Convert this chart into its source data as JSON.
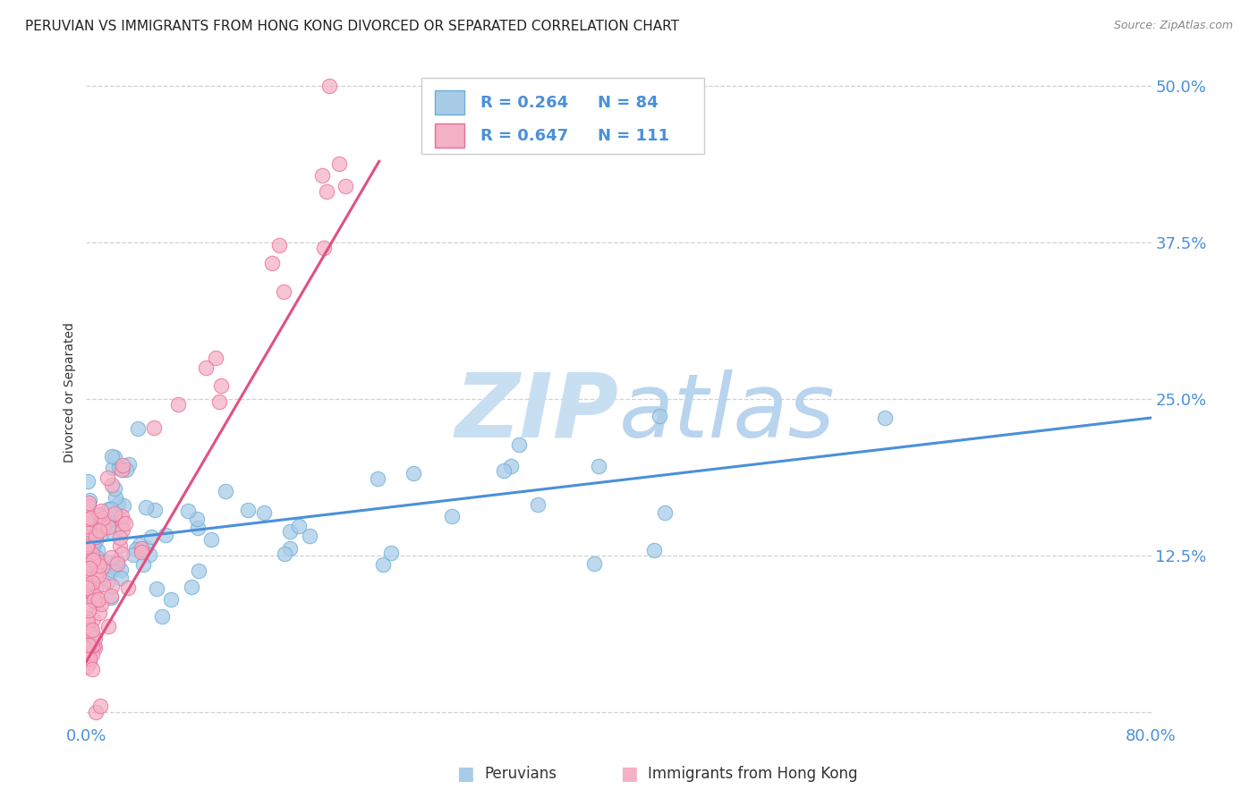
{
  "title": "PERUVIAN VS IMMIGRANTS FROM HONG KONG DIVORCED OR SEPARATED CORRELATION CHART",
  "source": "Source: ZipAtlas.com",
  "ylabel": "Divorced or Separated",
  "xlim": [
    0.0,
    0.8
  ],
  "ylim": [
    -0.01,
    0.52
  ],
  "yticks": [
    0.0,
    0.125,
    0.25,
    0.375,
    0.5
  ],
  "ytick_labels": [
    "",
    "12.5%",
    "25.0%",
    "37.5%",
    "50.0%"
  ],
  "xtick_positions": [
    0.0,
    0.1,
    0.2,
    0.3,
    0.4,
    0.5,
    0.6,
    0.7,
    0.8
  ],
  "xtick_labels": [
    "0.0%",
    "",
    "",
    "",
    "",
    "",
    "",
    "",
    "80.0%"
  ],
  "grid_color": "#cccccc",
  "background_color": "#ffffff",
  "watermark_line1": "ZIP",
  "watermark_line2": "atlas",
  "watermark_color": "#c8dff2",
  "legend_r1": "R = 0.264",
  "legend_n1": "N = 84",
  "legend_r2": "R = 0.647",
  "legend_n2": "N = 111",
  "series1_color": "#a8cce8",
  "series2_color": "#f4b0c5",
  "series1_edge": "#6baed6",
  "series2_edge": "#e87096",
  "trendline1_color": "#4a90d9",
  "trendline2_color": "#e05080",
  "series1_label": "Peruvians",
  "series2_label": "Immigrants from Hong Kong",
  "title_fontsize": 11,
  "axis_label_fontsize": 10,
  "tick_fontsize": 13,
  "tick_color": "#4a90d9",
  "rn_color": "#4a90d9",
  "label_color": "#333333"
}
